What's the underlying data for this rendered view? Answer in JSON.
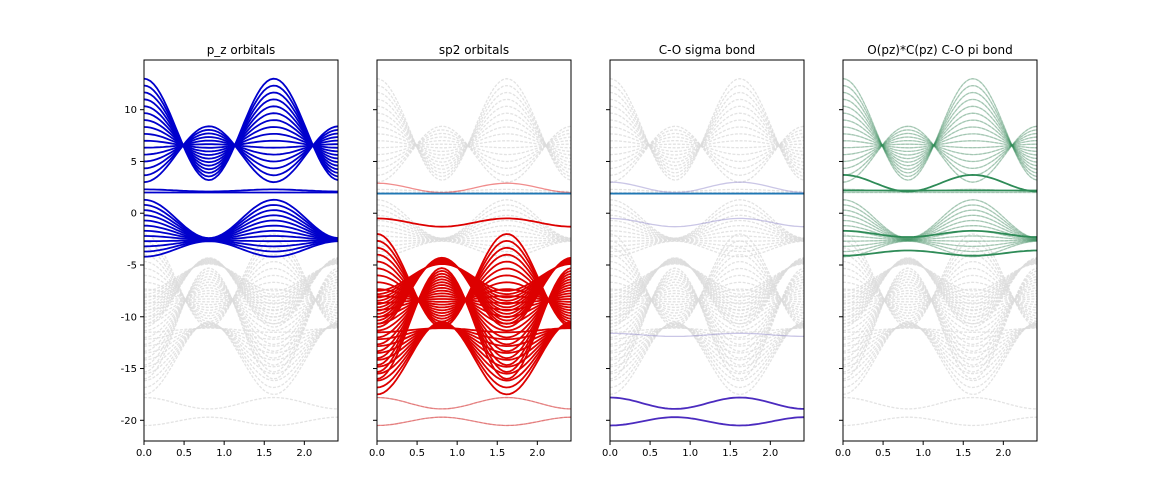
{
  "chart_data": [
    {
      "type": "line",
      "title": "p_z orbitals",
      "xlabel": "",
      "ylabel": "",
      "xlim": [
        0,
        2.42
      ],
      "ylim": [
        -22,
        14.8
      ],
      "x_ticks": [
        "0.0",
        "0.5",
        "1.0",
        "1.5",
        "2.0"
      ],
      "y_ticks": [
        "10",
        "5",
        "0",
        "-5",
        "-10",
        "-15",
        "-20"
      ],
      "grid": false,
      "series": [
        {
          "role": "background",
          "color": "#dcdcdc",
          "opacity": 0.8,
          "bands": "all"
        },
        {
          "role": "highlight",
          "color": "#0000cc",
          "opacity": 1.0,
          "bands": "pz"
        }
      ]
    },
    {
      "type": "line",
      "title": "sp2 orbitals",
      "xlabel": "",
      "ylabel": "",
      "xlim": [
        0,
        2.42
      ],
      "ylim": [
        -22,
        14.8
      ],
      "x_ticks": [
        "0.0",
        "0.5",
        "1.0",
        "1.5",
        "2.0"
      ],
      "y_ticks": [],
      "grid": false,
      "fermi_level": {
        "y": 1.9,
        "color": "#1f77b4"
      },
      "series": [
        {
          "role": "background",
          "color": "#dcdcdc",
          "opacity": 0.8,
          "bands": "all"
        },
        {
          "role": "highlight",
          "color": "#dd0000",
          "opacity": 1.0,
          "bands": "sp2"
        },
        {
          "role": "faint",
          "color": "#dd0000",
          "opacity": 0.45,
          "bands": "sp2_faint"
        }
      ]
    },
    {
      "type": "line",
      "title": "C-O sigma bond",
      "xlabel": "",
      "ylabel": "",
      "xlim": [
        0,
        2.42
      ],
      "ylim": [
        -22,
        14.8
      ],
      "x_ticks": [
        "0.0",
        "0.5",
        "1.0",
        "1.5",
        "2.0"
      ],
      "y_ticks": [],
      "grid": false,
      "fermi_level": {
        "y": 1.9,
        "color": "#1f77b4"
      },
      "series": [
        {
          "role": "background",
          "color": "#dcdcdc",
          "opacity": 0.8,
          "bands": "all"
        },
        {
          "role": "highlight",
          "color": "#4b2bbf",
          "opacity": 1.0,
          "bands": "sigma"
        },
        {
          "role": "faint",
          "color": "#8a80c8",
          "opacity": 0.45,
          "bands": "sigma_faint"
        }
      ]
    },
    {
      "type": "line",
      "title": "O(pz)*C(pz) C-O pi bond",
      "xlabel": "",
      "ylabel": "",
      "xlim": [
        0,
        2.42
      ],
      "ylim": [
        -22,
        14.8
      ],
      "x_ticks": [
        "0.0",
        "0.5",
        "1.0",
        "1.5",
        "2.0"
      ],
      "y_ticks": [],
      "grid": false,
      "series": [
        {
          "role": "background",
          "color": "#dcdcdc",
          "opacity": 0.8,
          "bands": "all"
        },
        {
          "role": "faint",
          "color": "#2e8b57",
          "opacity": 0.35,
          "bands": "pz"
        },
        {
          "role": "highlight",
          "color": "#2e8b57",
          "opacity": 1.0,
          "bands": "pi"
        }
      ]
    }
  ]
}
